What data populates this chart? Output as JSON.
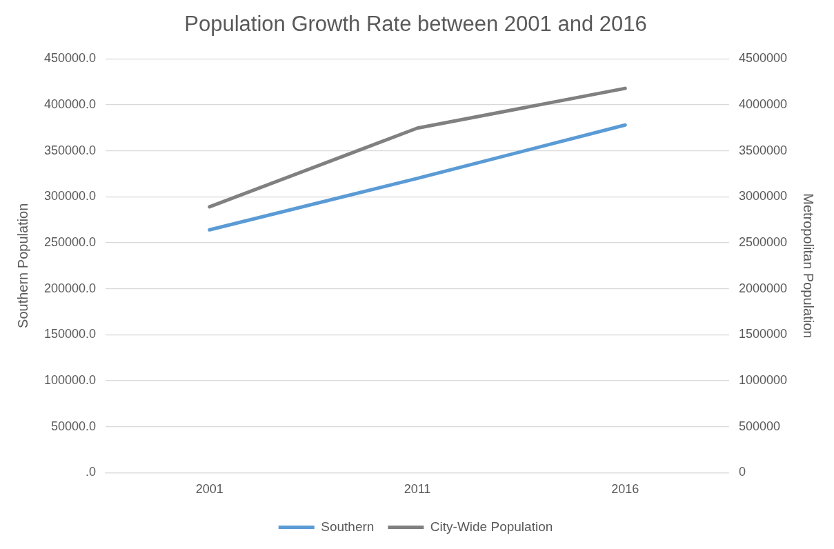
{
  "chart_data": {
    "type": "line",
    "title": "Population Growth Rate between 2001 and 2016",
    "ylabel": "Southern Population",
    "y2label": "Metropolitan Population",
    "categories": [
      "2001",
      "2011",
      "2016"
    ],
    "series": [
      {
        "name": "Southern",
        "color": "#5b9bd5",
        "values": [
          264000,
          320000,
          378000
        ]
      },
      {
        "name": "City-Wide Population",
        "color": "#808080",
        "axis": "y2",
        "values": [
          2890000,
          3746000,
          4178000
        ]
      }
    ],
    "ylim": [
      0,
      450000
    ],
    "yticks": [
      {
        "value": 0,
        "label": ".0"
      },
      {
        "value": 50000,
        "label": "50000.0"
      },
      {
        "value": 100000,
        "label": "100000.0"
      },
      {
        "value": 150000,
        "label": "150000.0"
      },
      {
        "value": 200000,
        "label": "200000.0"
      },
      {
        "value": 250000,
        "label": "250000.0"
      },
      {
        "value": 300000,
        "label": "300000.0"
      },
      {
        "value": 350000,
        "label": "350000.0"
      },
      {
        "value": 400000,
        "label": "400000.0"
      },
      {
        "value": 450000,
        "label": "450000.0"
      }
    ],
    "y2lim": [
      0,
      4500000
    ],
    "y2ticks": [
      0,
      500000,
      1000000,
      1500000,
      2000000,
      2500000,
      3000000,
      3500000,
      4000000,
      4500000
    ],
    "grid": "y",
    "legend": "bottom",
    "marker": "none",
    "line_style": "solid"
  }
}
